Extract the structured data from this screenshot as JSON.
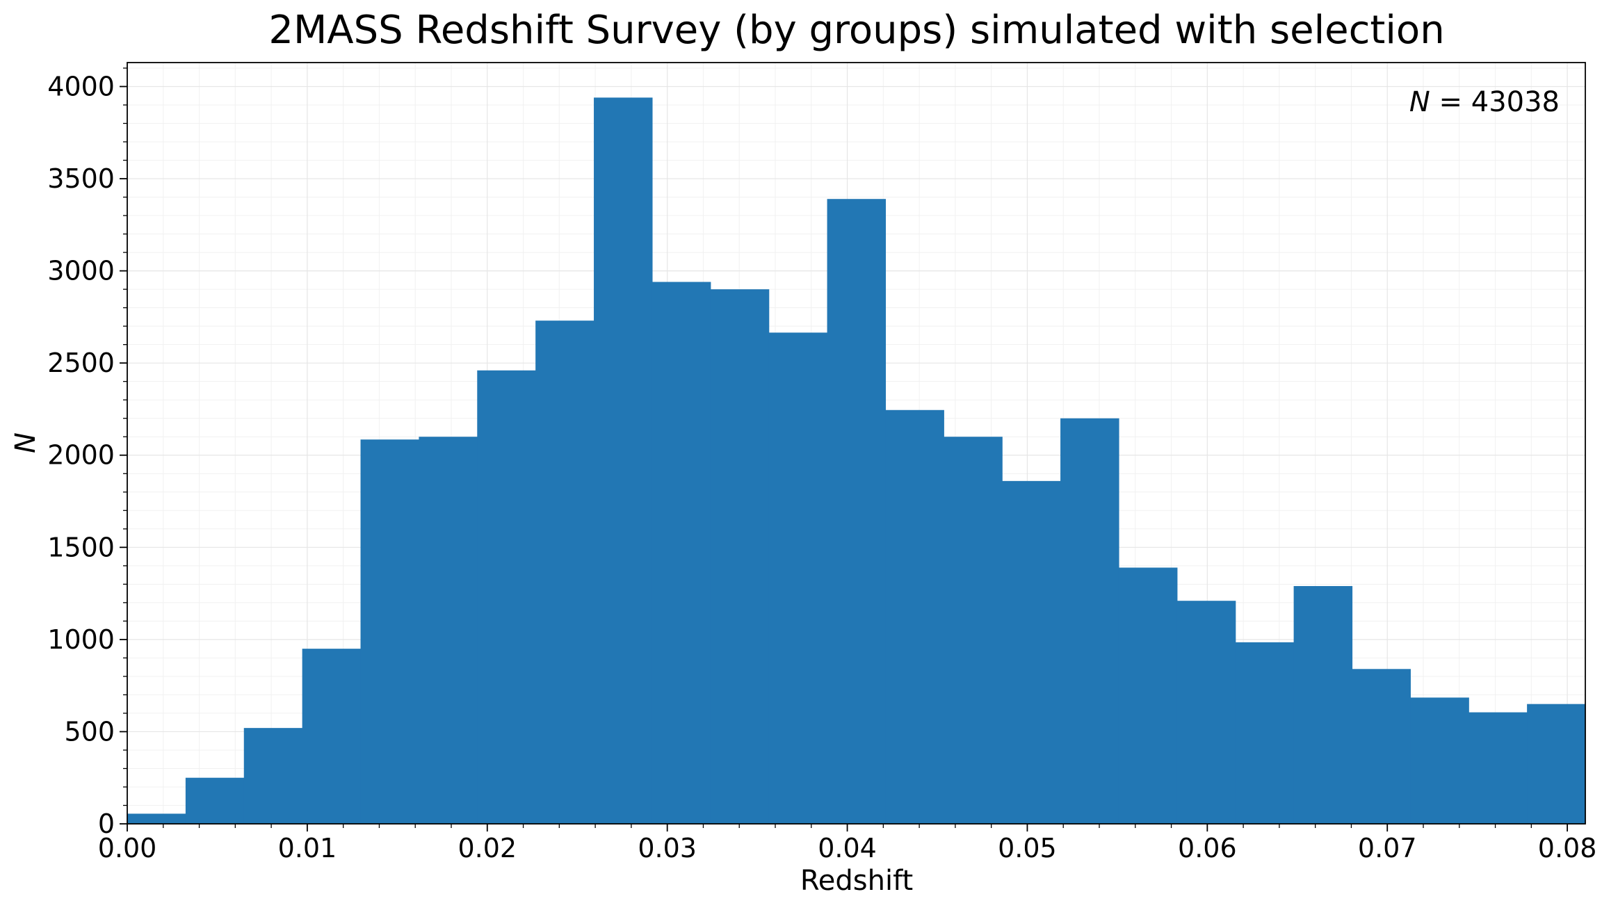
{
  "chart_data": {
    "type": "bar",
    "title": "2MASS Redshift Survey (by groups) simulated with selection",
    "xlabel": "Redshift",
    "ylabel": "N",
    "annotation": {
      "prefix": "N",
      "rest": " = 43038"
    },
    "xlim": [
      0.0,
      0.081
    ],
    "ylim": [
      0,
      4130
    ],
    "grid": true,
    "legend": "none",
    "bar_color": "#2277b4",
    "x_ticks": [
      "0.00",
      "0.01",
      "0.02",
      "0.03",
      "0.04",
      "0.05",
      "0.06",
      "0.07",
      "0.08"
    ],
    "y_ticks": [
      "0",
      "500",
      "1000",
      "1500",
      "2000",
      "2500",
      "3000",
      "3500",
      "4000"
    ],
    "bin_edges": [
      0.0,
      0.00324,
      0.00648,
      0.00972,
      0.01296,
      0.0162,
      0.01944,
      0.02268,
      0.02592,
      0.02916,
      0.0324,
      0.03564,
      0.03888,
      0.04212,
      0.04536,
      0.0486,
      0.05184,
      0.05508,
      0.05832,
      0.06156,
      0.0648,
      0.06804,
      0.07128,
      0.07452,
      0.07776,
      0.081
    ],
    "values": [
      55,
      250,
      520,
      950,
      2085,
      2100,
      2460,
      2730,
      3940,
      2940,
      2900,
      2665,
      3390,
      2245,
      2100,
      1860,
      2200,
      1390,
      1210,
      985,
      1290,
      840,
      685,
      605,
      650
    ]
  }
}
